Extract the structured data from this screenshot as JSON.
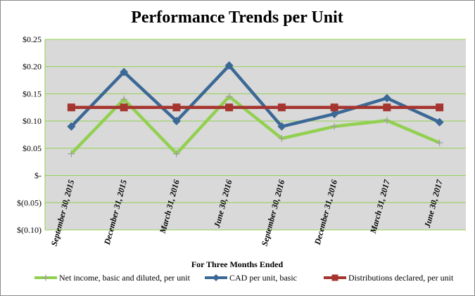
{
  "chart_data": {
    "type": "line",
    "title": "Performance Trends per Unit",
    "xlabel": "For Three Months  Ended",
    "ylabel": "",
    "ylim": [
      -0.1,
      0.25
    ],
    "yticks": [
      {
        "value": 0.25,
        "label": "$0.25"
      },
      {
        "value": 0.2,
        "label": "$0.20"
      },
      {
        "value": 0.15,
        "label": "$0.15"
      },
      {
        "value": 0.1,
        "label": "$0.10"
      },
      {
        "value": 0.05,
        "label": "$0.05"
      },
      {
        "value": 0.0,
        "label": "$-"
      },
      {
        "value": -0.05,
        "label": "$(0.05)"
      },
      {
        "value": -0.1,
        "label": "$(0.10)"
      }
    ],
    "categories": [
      "September 30, 2015",
      "December 31, 2015",
      "March 31, 2016",
      "June 30, 2016",
      "September 30, 2016",
      "December 31, 2016",
      "March 31, 2017",
      "June 30, 2017"
    ],
    "grid": true,
    "legend_position": "bottom",
    "plot_background": "#d9d9d9",
    "grid_color": "#92d050",
    "series": [
      {
        "name": "Net income, basic and diluted, per unit",
        "color": "#92d050",
        "marker": "plus",
        "values": [
          0.04,
          0.14,
          0.04,
          0.145,
          0.068,
          0.09,
          0.101,
          0.06
        ]
      },
      {
        "name": "CAD per unit, basic",
        "color": "#3c6896",
        "marker": "diamond",
        "values": [
          0.09,
          0.19,
          0.1,
          0.202,
          0.09,
          0.113,
          0.142,
          0.098
        ]
      },
      {
        "name": "Distributions declared, per unit",
        "color": "#a5352f",
        "marker": "square",
        "values": [
          0.125,
          0.125,
          0.125,
          0.125,
          0.125,
          0.125,
          0.125,
          0.125
        ]
      }
    ]
  }
}
